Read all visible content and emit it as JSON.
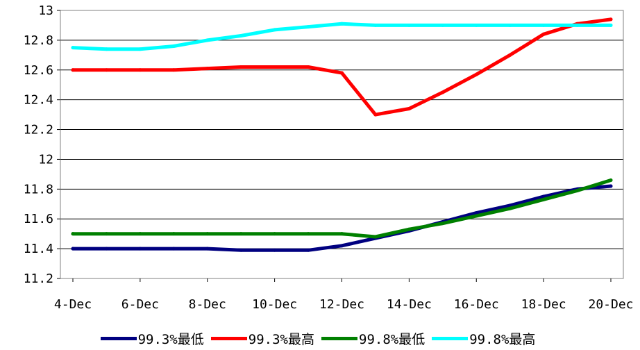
{
  "chart_data": {
    "type": "line",
    "title": "",
    "xlabel": "",
    "ylabel": "",
    "ylim": [
      11.2,
      13
    ],
    "yticks": [
      "11.2",
      "11.4",
      "11.6",
      "11.8",
      "12",
      "12.2",
      "12.4",
      "12.6",
      "12.8",
      "13"
    ],
    "x_start": "4-Dec",
    "x_end": "20-Dec",
    "xticks": [
      "4-Dec",
      "6-Dec",
      "8-Dec",
      "10-Dec",
      "12-Dec",
      "14-Dec",
      "16-Dec",
      "18-Dec",
      "20-Dec"
    ],
    "x": [
      "4-Dec",
      "5-Dec",
      "6-Dec",
      "7-Dec",
      "8-Dec",
      "9-Dec",
      "10-Dec",
      "11-Dec",
      "12-Dec",
      "13-Dec",
      "14-Dec",
      "15-Dec",
      "16-Dec",
      "17-Dec",
      "18-Dec",
      "19-Dec",
      "20-Dec"
    ],
    "grid": true,
    "legend_position": "bottom",
    "series": [
      {
        "name": "99.3%最低",
        "color": "#000080",
        "values": [
          11.4,
          11.4,
          11.4,
          11.4,
          11.4,
          11.39,
          11.39,
          11.39,
          11.42,
          11.47,
          11.52,
          11.58,
          11.64,
          11.69,
          11.75,
          11.8,
          11.82
        ]
      },
      {
        "name": "99.3%最高",
        "color": "#ff0000",
        "values": [
          12.6,
          12.6,
          12.6,
          12.6,
          12.61,
          12.62,
          12.62,
          12.62,
          12.58,
          12.3,
          12.34,
          12.45,
          12.57,
          12.7,
          12.84,
          12.91,
          12.94
        ]
      },
      {
        "name": "99.8%最低",
        "color": "#008000",
        "values": [
          11.5,
          11.5,
          11.5,
          11.5,
          11.5,
          11.5,
          11.5,
          11.5,
          11.5,
          11.48,
          11.53,
          11.57,
          11.62,
          11.67,
          11.73,
          11.79,
          11.86
        ]
      },
      {
        "name": "99.8%最高",
        "color": "#00ffff",
        "values": [
          12.75,
          12.74,
          12.74,
          12.76,
          12.8,
          12.83,
          12.87,
          12.89,
          12.91,
          12.9,
          12.9,
          12.9,
          12.9,
          12.9,
          12.9,
          12.9,
          12.9
        ]
      }
    ]
  }
}
